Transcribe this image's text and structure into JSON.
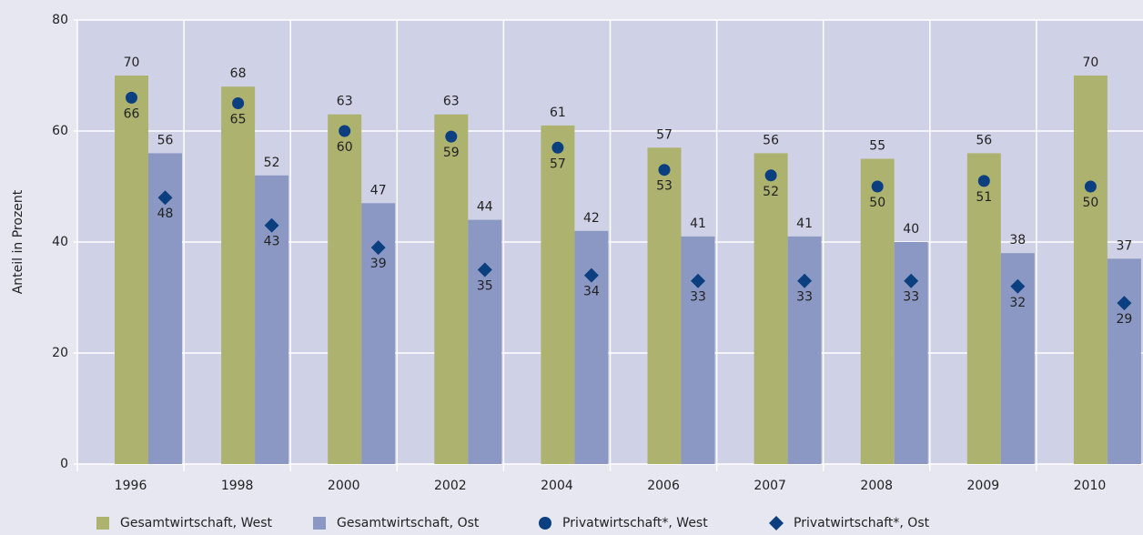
{
  "chart_data": {
    "type": "bar",
    "y_label": "Anteil in Prozent",
    "categories": [
      "1996",
      "1998",
      "2000",
      "2002",
      "2004",
      "2006",
      "2007",
      "2008",
      "2009",
      "2010"
    ],
    "series": [
      {
        "name": "Gesamtwirtschaft, West",
        "color": "#adb26f",
        "mark": "bar",
        "values": [
          70,
          68,
          63,
          63,
          61,
          57,
          56,
          55,
          56,
          70
        ]
      },
      {
        "name": "Gesamtwirtschaft, Ost",
        "color": "#8b98c4",
        "mark": "bar",
        "values": [
          56,
          52,
          47,
          44,
          42,
          41,
          41,
          40,
          38,
          37
        ]
      },
      {
        "name": "Privatwirtschaft*, West",
        "color": "#0b3f7f",
        "mark": "circle",
        "values": [
          66,
          65,
          60,
          59,
          57,
          53,
          52,
          50,
          51,
          50
        ]
      },
      {
        "name": "Privatwirtschaft*, Ost",
        "color": "#0b3f7f",
        "mark": "diamond",
        "values": [
          48,
          43,
          39,
          35,
          34,
          33,
          33,
          33,
          32,
          29
        ]
      }
    ],
    "ylim": [
      0,
      80
    ],
    "yticks": [
      0,
      20,
      40,
      60,
      80
    ],
    "grid": true,
    "legend": "bottom"
  }
}
